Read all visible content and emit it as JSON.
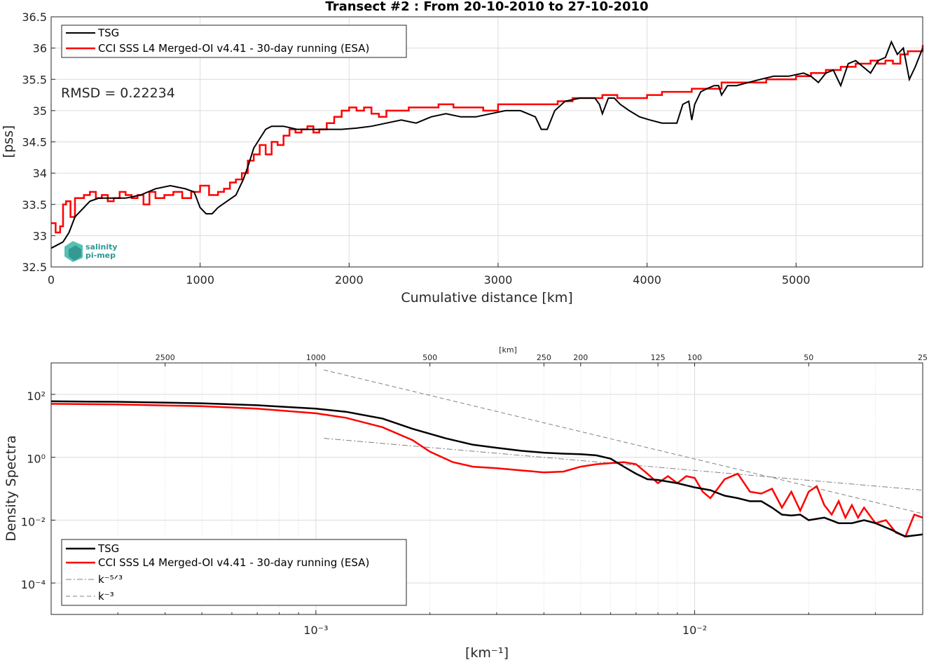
{
  "colors": {
    "tsg": "#000000",
    "cci": "#ff0000",
    "ref": "#808080",
    "grid": "#dcdcdc",
    "axis": "#262626"
  },
  "logo": {
    "line1": "salinity",
    "line2": "pi-mep"
  },
  "chart_data": [
    {
      "type": "line",
      "title": "Transect #2 : From 20-10-2010 to 27-10-2010",
      "xlabel": "Cumulative distance [km]",
      "ylabel": "[pss]",
      "xlim": [
        0,
        5850
      ],
      "ylim": [
        32.5,
        36.5
      ],
      "xticks": [
        0,
        1000,
        2000,
        3000,
        4000,
        5000
      ],
      "yticks": [
        32.5,
        33,
        33.5,
        34,
        34.5,
        35,
        35.5,
        36,
        36.5
      ],
      "annotation": "RMSD = 0.22234",
      "legend": "top-left",
      "grid": true,
      "series": [
        {
          "name": "TSG",
          "x": [
            0,
            40,
            80,
            120,
            160,
            200,
            260,
            320,
            400,
            500,
            600,
            700,
            800,
            900,
            960,
            1000,
            1040,
            1080,
            1120,
            1180,
            1240,
            1290,
            1320,
            1360,
            1400,
            1440,
            1480,
            1560,
            1650,
            1760,
            1850,
            1950,
            2050,
            2150,
            2250,
            2350,
            2450,
            2550,
            2650,
            2750,
            2850,
            2950,
            3050,
            3150,
            3200,
            3250,
            3290,
            3330,
            3380,
            3450,
            3550,
            3650,
            3680,
            3700,
            3740,
            3780,
            3820,
            3880,
            3950,
            4020,
            4100,
            4150,
            4200,
            4240,
            4280,
            4300,
            4320,
            4360,
            4400,
            4450,
            4480,
            4500,
            4540,
            4600,
            4680,
            4760,
            4850,
            4950,
            5050,
            5100,
            5150,
            5200,
            5250,
            5300,
            5350,
            5400,
            5450,
            5500,
            5550,
            5600,
            5640,
            5680,
            5720,
            5760,
            5800,
            5850
          ],
          "y": [
            32.8,
            32.85,
            32.9,
            33.05,
            33.3,
            33.4,
            33.55,
            33.6,
            33.6,
            33.6,
            33.65,
            33.75,
            33.8,
            33.75,
            33.7,
            33.45,
            33.35,
            33.35,
            33.45,
            33.55,
            33.65,
            33.9,
            34.1,
            34.4,
            34.55,
            34.7,
            34.75,
            34.75,
            34.7,
            34.7,
            34.7,
            34.7,
            34.72,
            34.75,
            34.8,
            34.85,
            34.8,
            34.9,
            34.95,
            34.9,
            34.9,
            34.95,
            35.0,
            35.0,
            34.95,
            34.9,
            34.7,
            34.7,
            35.0,
            35.15,
            35.2,
            35.2,
            35.1,
            34.95,
            35.2,
            35.2,
            35.1,
            35.0,
            34.9,
            34.85,
            34.8,
            34.8,
            34.8,
            35.1,
            35.15,
            34.85,
            35.1,
            35.3,
            35.35,
            35.4,
            35.4,
            35.25,
            35.4,
            35.4,
            35.45,
            35.5,
            35.55,
            35.55,
            35.6,
            35.55,
            35.45,
            35.6,
            35.65,
            35.4,
            35.75,
            35.8,
            35.7,
            35.6,
            35.8,
            35.85,
            36.1,
            35.9,
            36.0,
            35.5,
            35.7,
            36.0
          ]
        },
        {
          "name": "CCI SSS L4 Merged-OI v4.41 - 30-day running (ESA)",
          "x": [
            0,
            30,
            60,
            80,
            100,
            130,
            160,
            190,
            220,
            260,
            300,
            340,
            380,
            420,
            460,
            500,
            540,
            580,
            620,
            660,
            700,
            760,
            820,
            880,
            940,
            1000,
            1060,
            1120,
            1160,
            1200,
            1240,
            1280,
            1320,
            1360,
            1400,
            1440,
            1480,
            1520,
            1560,
            1600,
            1640,
            1680,
            1720,
            1760,
            1800,
            1850,
            1900,
            1950,
            2000,
            2050,
            2100,
            2150,
            2200,
            2250,
            2300,
            2400,
            2500,
            2600,
            2700,
            2800,
            2900,
            3000,
            3100,
            3200,
            3300,
            3400,
            3500,
            3600,
            3700,
            3800,
            3900,
            4000,
            4100,
            4200,
            4300,
            4400,
            4500,
            4600,
            4700,
            4800,
            4900,
            5000,
            5100,
            5200,
            5300,
            5400,
            5500,
            5550,
            5600,
            5650,
            5700,
            5750,
            5800,
            5850
          ],
          "y": [
            33.2,
            33.05,
            33.15,
            33.5,
            33.55,
            33.3,
            33.6,
            33.6,
            33.65,
            33.7,
            33.6,
            33.65,
            33.55,
            33.6,
            33.7,
            33.65,
            33.6,
            33.65,
            33.5,
            33.7,
            33.6,
            33.65,
            33.7,
            33.6,
            33.7,
            33.8,
            33.65,
            33.7,
            33.75,
            33.85,
            33.9,
            34.0,
            34.2,
            34.3,
            34.45,
            34.3,
            34.5,
            34.45,
            34.6,
            34.7,
            34.65,
            34.7,
            34.75,
            34.65,
            34.7,
            34.8,
            34.9,
            35.0,
            35.05,
            35.0,
            35.05,
            34.95,
            34.9,
            35.0,
            35.0,
            35.05,
            35.05,
            35.1,
            35.05,
            35.05,
            35.0,
            35.1,
            35.1,
            35.1,
            35.1,
            35.15,
            35.2,
            35.2,
            35.25,
            35.2,
            35.2,
            35.25,
            35.3,
            35.3,
            35.35,
            35.35,
            35.45,
            35.45,
            35.45,
            35.5,
            35.5,
            35.55,
            35.6,
            35.65,
            35.7,
            35.75,
            35.8,
            35.75,
            35.8,
            35.75,
            35.9,
            35.95,
            35.95,
            36.05
          ]
        }
      ]
    },
    {
      "type": "line",
      "xlabel": "[km⁻¹]",
      "ylabel": "Density Spectra",
      "x_scale": "log",
      "y_scale": "log",
      "xlim": [
        0.0002,
        0.04
      ],
      "ylim": [
        1e-05,
        1000
      ],
      "xticks": [
        0.001,
        0.01
      ],
      "xtick_labels": [
        "10⁻³",
        "10⁻²"
      ],
      "yticks": [
        0.0001,
        0.01,
        1,
        100
      ],
      "ytick_labels": [
        "10⁻⁴",
        "10⁻²",
        "10⁰",
        "10²"
      ],
      "top_axis_label": "[km]",
      "top_ticks": [
        2500,
        1000,
        500,
        250,
        200,
        125,
        100,
        50,
        25
      ],
      "legend": "bottom-left",
      "grid": true,
      "series": [
        {
          "name": "TSG",
          "x": [
            0.0002,
            0.0003,
            0.0005,
            0.0007,
            0.001,
            0.0012,
            0.0015,
            0.0018,
            0.0022,
            0.0026,
            0.003,
            0.0035,
            0.004,
            0.0045,
            0.005,
            0.0055,
            0.006,
            0.0065,
            0.007,
            0.0075,
            0.008,
            0.009,
            0.01,
            0.011,
            0.012,
            0.013,
            0.014,
            0.015,
            0.016,
            0.017,
            0.018,
            0.019,
            0.02,
            0.022,
            0.024,
            0.026,
            0.028,
            0.03,
            0.033,
            0.036,
            0.04
          ],
          "y": [
            60,
            58,
            52,
            45,
            35,
            28,
            17,
            8,
            4,
            2.5,
            2.0,
            1.6,
            1.4,
            1.3,
            1.25,
            1.15,
            0.9,
            0.5,
            0.3,
            0.2,
            0.19,
            0.15,
            0.11,
            0.09,
            0.06,
            0.05,
            0.04,
            0.04,
            0.025,
            0.015,
            0.014,
            0.015,
            0.01,
            0.012,
            0.008,
            0.008,
            0.01,
            0.008,
            0.005,
            0.003,
            0.0035
          ]
        },
        {
          "name": "CCI SSS L4 Merged-OI v4.41 - 30-day running (ESA)",
          "x": [
            0.0002,
            0.0003,
            0.0005,
            0.0007,
            0.001,
            0.0012,
            0.0015,
            0.0018,
            0.002,
            0.0023,
            0.0026,
            0.003,
            0.0035,
            0.004,
            0.0045,
            0.005,
            0.0055,
            0.006,
            0.0065,
            0.007,
            0.0075,
            0.008,
            0.0085,
            0.009,
            0.0095,
            0.01,
            0.0105,
            0.011,
            0.0115,
            0.012,
            0.013,
            0.014,
            0.015,
            0.016,
            0.017,
            0.018,
            0.019,
            0.02,
            0.021,
            0.022,
            0.023,
            0.024,
            0.025,
            0.026,
            0.027,
            0.028,
            0.03,
            0.032,
            0.034,
            0.036,
            0.038,
            0.04
          ],
          "y": [
            50,
            48,
            42,
            35,
            25,
            18,
            9,
            3.5,
            1.5,
            0.7,
            0.5,
            0.45,
            0.38,
            0.33,
            0.35,
            0.5,
            0.6,
            0.65,
            0.7,
            0.6,
            0.3,
            0.15,
            0.25,
            0.15,
            0.25,
            0.22,
            0.08,
            0.05,
            0.1,
            0.2,
            0.3,
            0.08,
            0.07,
            0.1,
            0.025,
            0.08,
            0.02,
            0.08,
            0.12,
            0.03,
            0.015,
            0.04,
            0.012,
            0.03,
            0.012,
            0.025,
            0.008,
            0.01,
            0.004,
            0.003,
            0.015,
            0.012
          ]
        },
        {
          "name": "k⁻⁵ᐟ³",
          "x": [
            0.00105,
            0.04
          ],
          "y": [
            4.0,
            0.09
          ]
        },
        {
          "name": "k⁻³",
          "x": [
            0.00105,
            0.04
          ],
          "y": [
            600,
            0.016
          ]
        }
      ]
    }
  ]
}
